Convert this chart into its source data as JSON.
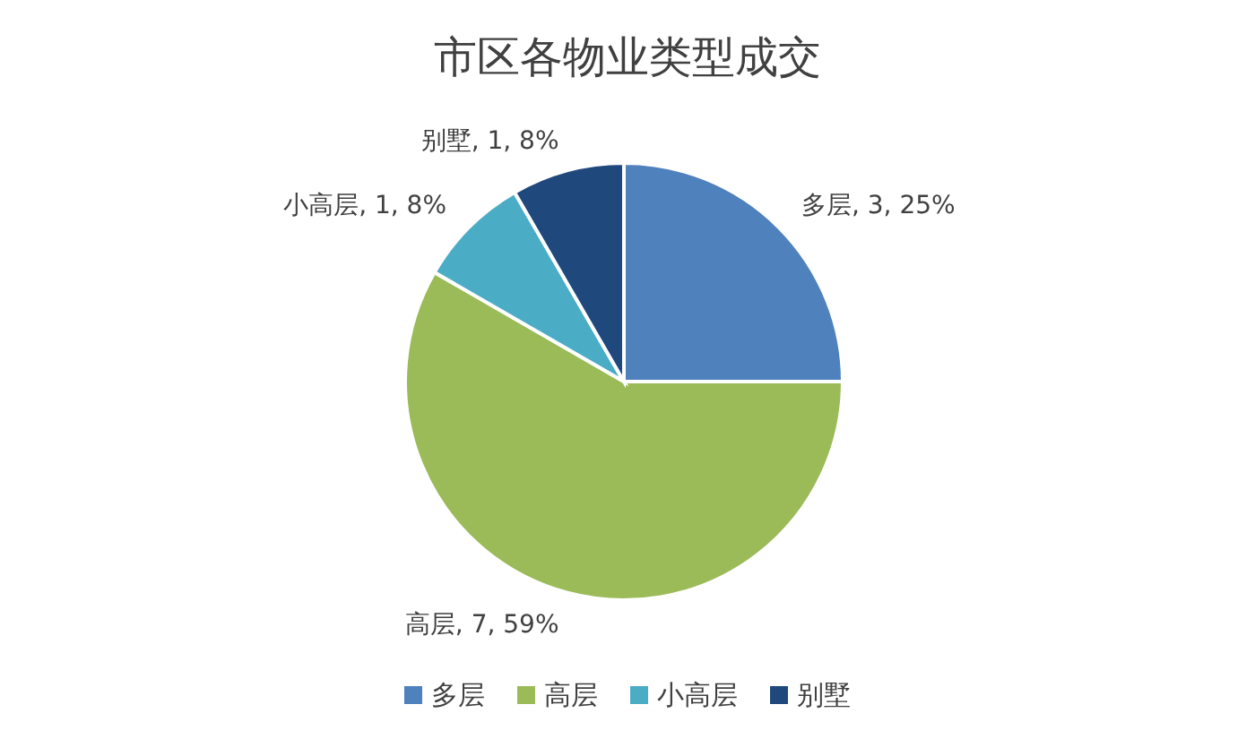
{
  "chart_data": {
    "type": "pie",
    "title": "市区各物业类型成交",
    "categories": [
      "多层",
      "高层",
      "小高层",
      "别墅"
    ],
    "values": [
      3,
      7,
      1,
      1
    ],
    "colors": [
      "#4f81bd",
      "#9bbb59",
      "#4bacc6",
      "#1f497d"
    ],
    "value_labels": [
      "多层, 3, 25%",
      "高层, 7, 59%",
      "小高层, 1, 8%",
      "别墅, 1, 8%"
    ],
    "legend": "bottom"
  }
}
